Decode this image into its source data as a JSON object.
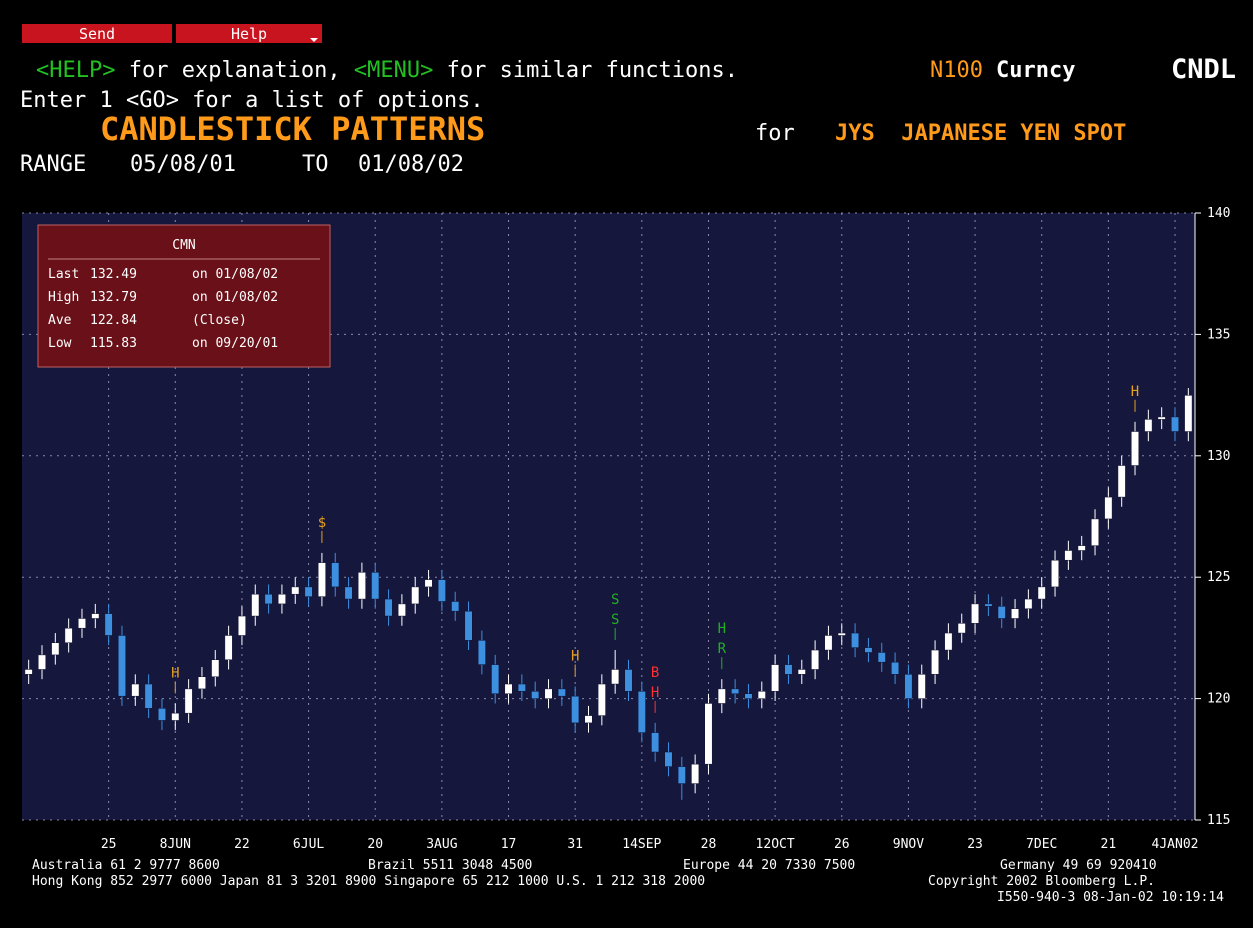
{
  "header": {
    "buttons": [
      "Send",
      "Help"
    ],
    "help_key": "<HELP>",
    "help_text": " for explanation, ",
    "menu_key": "<MENU>",
    "menu_text": " for similar functions.",
    "ticker": "N100",
    "market": "Curncy",
    "function": "CNDL",
    "enter_line": "Enter 1 <GO> for a list of options.",
    "range_label": "RANGE",
    "range_from": "05/08/01",
    "range_to_label": "TO",
    "range_to": "01/08/02"
  },
  "chart_data": {
    "type": "candlestick",
    "title": "CANDLESTICK PATTERNS",
    "title_for": "for",
    "security": "JYS  JAPANESE YEN SPOT",
    "up_color": "#ffffff",
    "down_color": "#3d8fe0",
    "grid": true,
    "open": [
      121.0,
      121.2,
      121.8,
      122.3,
      122.9,
      123.3,
      123.5,
      122.6,
      120.1,
      120.6,
      119.6,
      119.1,
      119.4,
      120.4,
      120.9,
      121.6,
      122.6,
      123.4,
      124.3,
      123.9,
      124.3,
      124.6,
      124.2,
      125.6,
      124.6,
      124.1,
      125.2,
      124.1,
      123.4,
      123.9,
      124.6,
      124.9,
      124.0,
      123.6,
      122.4,
      121.4,
      120.2,
      120.6,
      120.3,
      120.0,
      120.4,
      120.1,
      119.0,
      119.3,
      120.6,
      121.2,
      120.3,
      118.6,
      117.8,
      117.2,
      116.5,
      117.3,
      119.8,
      120.4,
      120.2,
      120.0,
      120.3,
      121.4,
      121.0,
      121.2,
      122.0,
      122.6,
      122.7,
      122.1,
      121.9,
      121.5,
      121.0,
      120.0,
      121.0,
      122.0,
      122.7,
      123.1,
      123.9,
      123.8,
      123.3,
      123.7,
      124.1,
      124.6,
      125.7,
      126.1,
      126.3,
      127.4,
      128.3,
      129.6,
      131.0,
      131.5,
      131.6,
      131.0
    ],
    "high": [
      121.6,
      122.2,
      122.7,
      123.3,
      123.7,
      123.9,
      123.9,
      123.0,
      121.0,
      121.0,
      120.0,
      119.8,
      120.8,
      121.3,
      122.0,
      123.0,
      123.8,
      124.7,
      124.7,
      124.7,
      125.0,
      125.0,
      126.0,
      126.0,
      125.0,
      125.6,
      125.6,
      124.5,
      124.3,
      125.0,
      125.3,
      125.3,
      124.4,
      124.0,
      122.8,
      121.8,
      121.0,
      121.0,
      120.7,
      120.8,
      120.8,
      120.5,
      119.7,
      121.0,
      122.0,
      121.6,
      120.7,
      119.0,
      118.2,
      117.6,
      117.7,
      120.2,
      120.8,
      120.8,
      120.6,
      120.7,
      121.8,
      121.8,
      121.6,
      122.4,
      123.0,
      123.1,
      123.1,
      122.5,
      122.3,
      121.9,
      121.4,
      121.4,
      122.4,
      123.1,
      123.5,
      124.3,
      124.3,
      124.2,
      124.1,
      124.5,
      125.0,
      126.1,
      126.5,
      126.7,
      127.8,
      128.7,
      130.0,
      131.4,
      131.9,
      132.0,
      132.0,
      132.79
    ],
    "low": [
      120.6,
      120.8,
      121.4,
      121.9,
      122.5,
      122.9,
      122.2,
      119.7,
      119.7,
      119.2,
      118.7,
      118.7,
      119.0,
      120.0,
      120.5,
      121.2,
      122.2,
      123.0,
      123.5,
      123.5,
      123.9,
      123.8,
      123.8,
      124.2,
      123.7,
      123.7,
      123.7,
      123.0,
      123.0,
      123.5,
      124.2,
      123.6,
      123.2,
      122.0,
      121.0,
      119.8,
      119.8,
      119.9,
      119.6,
      119.6,
      119.7,
      118.6,
      118.6,
      118.9,
      120.2,
      119.9,
      118.2,
      117.4,
      116.8,
      115.83,
      116.1,
      116.9,
      119.4,
      119.8,
      119.6,
      119.6,
      119.9,
      120.6,
      120.6,
      120.8,
      121.6,
      122.2,
      121.7,
      121.5,
      121.1,
      120.6,
      119.6,
      119.6,
      120.6,
      121.6,
      122.3,
      122.7,
      123.4,
      122.9,
      122.9,
      123.3,
      123.7,
      124.2,
      125.3,
      125.7,
      125.9,
      127.0,
      127.9,
      129.2,
      130.6,
      131.1,
      130.6,
      130.6
    ],
    "close": [
      121.2,
      121.8,
      122.3,
      122.9,
      123.3,
      123.5,
      122.6,
      120.1,
      120.6,
      119.6,
      119.1,
      119.4,
      120.4,
      120.9,
      121.6,
      122.6,
      123.4,
      124.3,
      123.9,
      124.3,
      124.6,
      124.2,
      125.6,
      124.6,
      124.1,
      125.2,
      124.1,
      123.4,
      123.9,
      124.6,
      124.9,
      124.0,
      123.6,
      122.4,
      121.4,
      120.2,
      120.6,
      120.3,
      120.0,
      120.4,
      120.1,
      119.0,
      119.3,
      120.6,
      121.2,
      120.3,
      118.6,
      117.8,
      117.2,
      116.5,
      117.3,
      119.8,
      120.4,
      120.2,
      120.0,
      120.3,
      121.4,
      121.0,
      121.2,
      122.0,
      122.6,
      122.7,
      122.1,
      121.9,
      121.5,
      121.0,
      120.0,
      121.0,
      122.0,
      122.7,
      123.1,
      123.9,
      123.8,
      123.3,
      123.7,
      124.1,
      124.6,
      125.7,
      126.1,
      126.3,
      127.4,
      128.3,
      129.6,
      131.0,
      131.5,
      131.6,
      131.0,
      132.49
    ],
    "xlim": [
      0,
      88
    ],
    "xticks": [
      {
        "value": 6.5,
        "label": "25"
      },
      {
        "value": 11.5,
        "label": "8JUN"
      },
      {
        "value": 16.5,
        "label": "22"
      },
      {
        "value": 21.5,
        "label": "6JUL"
      },
      {
        "value": 26.5,
        "label": "20"
      },
      {
        "value": 31.5,
        "label": "3AUG"
      },
      {
        "value": 36.5,
        "label": "17"
      },
      {
        "value": 41.5,
        "label": "31"
      },
      {
        "value": 46.5,
        "label": "14SEP"
      },
      {
        "value": 51.5,
        "label": "28"
      },
      {
        "value": 56.5,
        "label": "12OCT"
      },
      {
        "value": 61.5,
        "label": "26"
      },
      {
        "value": 66.5,
        "label": "9NOV"
      },
      {
        "value": 71.5,
        "label": "23"
      },
      {
        "value": 76.5,
        "label": "7DEC"
      },
      {
        "value": 81.5,
        "label": "21"
      },
      {
        "value": 86.5,
        "label": "4JAN02"
      }
    ],
    "ylim": [
      115,
      140
    ],
    "yticks": [
      115,
      120,
      125,
      130,
      135,
      140
    ],
    "annotations": [
      {
        "x": 11,
        "text": [
          "H"
        ],
        "color": "#e8a020"
      },
      {
        "x": 22,
        "text": [
          "$"
        ],
        "color": "#e8a020"
      },
      {
        "x": 41,
        "text": [
          "H"
        ],
        "color": "#e8a020"
      },
      {
        "x": 44,
        "text": [
          "S",
          "S"
        ],
        "color": "#22b022"
      },
      {
        "x": 47,
        "text": [
          "B",
          "H"
        ],
        "color": "#ff3030"
      },
      {
        "x": 52,
        "text": [
          "H",
          "R"
        ],
        "color": "#22b022"
      },
      {
        "x": 83,
        "text": [
          "H"
        ],
        "color": "#e8a020"
      }
    ],
    "info_box": {
      "title": "CMN",
      "rows": [
        [
          "Last",
          "132.49",
          "on 01/08/02"
        ],
        [
          "High",
          "132.79",
          "on 01/08/02"
        ],
        [
          "Ave",
          "122.84",
          "(Close)"
        ],
        [
          "Low",
          "115.83",
          "on 09/20/01"
        ]
      ]
    }
  },
  "footer": {
    "line1": [
      "Australia 61 2 9777 8600",
      "Brazil 5511 3048 4500",
      "Europe 44 20 7330 7500",
      "Germany 49 69 920410"
    ],
    "line2": "Hong Kong 852 2977 6000 Japan 81 3 3201 8900 Singapore 65 212 1000 U.S. 1 212 318 2000",
    "copyright": "Copyright 2002 Bloomberg L.P.",
    "stamp": "I550-940-3 08-Jan-02 10:19:14"
  }
}
